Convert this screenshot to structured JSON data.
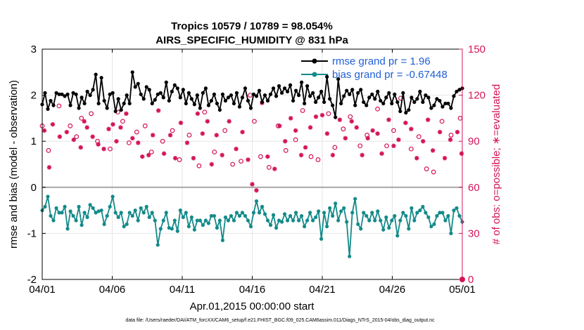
{
  "chart_data": {
    "type": "line",
    "title": "Tropics 10579 / 10789 = 98.054%",
    "subtitle": "AIRS_SPECIFIC_HUMIDITY @ 831 hPa",
    "xlabel": "Apr.01,2015 00:00:00 start",
    "ylabel": "rmse and bias (model - observation)",
    "ylabel_right": "# of obs: o=possible; ∗=evaluated",
    "footer": "data file: /Users/raeder/DAI/ATM_forcXX/CAM6_setup/f.e21.FHIST_BGC.f09_025.CAM6assim.011/Diags_NTrS_2015-04/obs_diag_output.nc",
    "xlim": [
      0,
      30
    ],
    "ylim": [
      -2,
      3
    ],
    "ylim_right": [
      0,
      150
    ],
    "xticks": [
      0,
      5,
      10,
      15,
      20,
      25,
      30
    ],
    "xtick_labels": [
      "04/01",
      "04/06",
      "04/11",
      "04/16",
      "04/21",
      "04/26",
      "05/01"
    ],
    "yticks": [
      -2,
      -1,
      0,
      1,
      2,
      3
    ],
    "ytick_labels": [
      "-2",
      "-1",
      "0",
      "1",
      "2",
      "3"
    ],
    "yticks_right": [
      0,
      30,
      60,
      90,
      120,
      150
    ],
    "ytick_labels_right": [
      "0",
      "30",
      "60",
      "90",
      "120",
      "150"
    ],
    "grid": true,
    "legend_position": "top-right",
    "series": [
      {
        "name": "rmse grand pr = 1.96",
        "color": "#000000",
        "marker": "dot",
        "axis": "left",
        "values": [
          1.8,
          2.05,
          1.7,
          1.88,
          1.78,
          2.05,
          2.02,
          2.02,
          1.98,
          2.02,
          1.78,
          2.05,
          2.02,
          1.72,
          1.95,
          1.82,
          2.08,
          2.0,
          2.12,
          2.45,
          1.82,
          2.38,
          1.88,
          1.72,
          2.02,
          2.05,
          1.65,
          1.92,
          1.68,
          1.82,
          2.0,
          1.82,
          2.5,
          2.18,
          2.25,
          2.02,
          1.92,
          2.18,
          2.12,
          1.82,
          1.9,
          2.02,
          2.05,
          1.95,
          2.28,
          1.88,
          2.08,
          2.22,
          2.15,
          1.95,
          2.12,
          1.82,
          2.05,
          1.92,
          1.8,
          2.0,
          1.72,
          2.05,
          2.15,
          1.78,
          1.88,
          2.02,
          1.82,
          1.68,
          2.02,
          1.88,
          1.95,
          2.0,
          1.82,
          2.05,
          1.75,
          1.95,
          2.15,
          1.88,
          1.72,
          2.02,
          1.98,
          2.1,
          1.85,
          2.0,
          1.88,
          2.02,
          2.15,
          1.98,
          2.2,
          2.05,
          2.15,
          2.08,
          2.22,
          1.88,
          2.1,
          2.0,
          2.28,
          1.82,
          2.2,
          1.98,
          2.05,
          1.85,
          1.95,
          2.08,
          1.85,
          2.4,
          1.92,
          1.78,
          1.52,
          2.35,
          1.82,
          1.98,
          2.1,
          2.02,
          2.12,
          1.78,
          2.05,
          2.12,
          1.85,
          1.78,
          1.95,
          2.02,
          1.92,
          2.08,
          1.88,
          1.82,
          1.95,
          2.05,
          1.82,
          2.02,
          1.85,
          1.65,
          2.05,
          1.62,
          1.68,
          1.95,
          1.85,
          1.92,
          2.08,
          1.85,
          2.0,
          1.95,
          1.72,
          1.78,
          1.92,
          1.88,
          1.75,
          1.82,
          1.82,
          1.72,
          1.98,
          2.08,
          2.12,
          2.15
        ]
      },
      {
        "name": "bias grand pr = -0.67448",
        "color": "#148a8a",
        "marker": "dot",
        "axis": "left",
        "values": [
          -0.5,
          -0.42,
          -0.2,
          -0.62,
          -0.72,
          -0.45,
          -0.55,
          -0.55,
          -0.42,
          -0.9,
          -0.52,
          -0.62,
          -0.72,
          -0.42,
          -0.82,
          -0.55,
          -0.65,
          -0.38,
          -0.45,
          -0.55,
          -0.52,
          -0.5,
          -0.8,
          -0.62,
          -0.42,
          -0.2,
          -0.55,
          -0.65,
          -0.55,
          -0.85,
          -0.8,
          -0.55,
          -0.62,
          -0.5,
          -0.72,
          -0.45,
          -0.55,
          -0.42,
          -0.65,
          -0.55,
          -0.72,
          -1.25,
          -0.9,
          -0.72,
          -0.55,
          -0.88,
          -0.9,
          -0.72,
          -0.95,
          -0.5,
          -0.65,
          -0.55,
          -0.85,
          -0.65,
          -0.92,
          -0.72,
          -0.72,
          -0.82,
          -0.72,
          -0.78,
          -0.62,
          -0.62,
          -0.88,
          -0.72,
          -1.15,
          -0.65,
          -0.72,
          -0.62,
          -0.72,
          -0.55,
          -0.62,
          -0.55,
          -0.62,
          -0.72,
          -0.85,
          -0.55,
          -0.3,
          -0.55,
          -0.42,
          -0.58,
          -0.72,
          -0.82,
          -0.6,
          -0.88,
          -0.72,
          -0.75,
          -0.58,
          -0.72,
          -0.62,
          -0.72,
          -0.55,
          -0.72,
          -0.62,
          -0.85,
          -0.72,
          -0.55,
          -0.72,
          -0.65,
          -0.52,
          -1.12,
          -0.55,
          -0.85,
          -0.45,
          -0.62,
          -0.35,
          -0.72,
          -0.52,
          -0.45,
          -0.75,
          -1.5,
          -0.55,
          -0.25,
          -0.8,
          -0.9,
          -0.55,
          -0.62,
          -0.72,
          -0.55,
          -0.72,
          -0.52,
          -0.72,
          -0.92,
          -0.65,
          -0.88,
          -0.72,
          -0.62,
          -1.05,
          -0.72,
          -0.55,
          -0.62,
          -0.9,
          -0.45,
          -0.72,
          -0.55,
          -0.5,
          -0.42,
          -0.55,
          -0.65,
          -0.85,
          -0.8,
          -0.62,
          -0.55,
          -0.55,
          -0.72,
          -0.62,
          -1.0,
          -0.5,
          -0.45,
          -0.62,
          -0.75
        ]
      }
    ],
    "obs_possible": {
      "color": "#d4145a",
      "marker": "o",
      "axis": "right",
      "x": [
        0,
        0.45,
        1.2,
        2.0,
        2.45,
        2.8,
        3.5,
        3.95,
        4.85,
        5.4,
        5.75,
        6.2,
        6.75,
        7.35,
        7.8,
        8.6,
        9.3,
        9.8,
        10.5,
        11.2,
        11.6,
        12.3,
        13.05,
        13.6,
        14.2,
        14.85,
        15.15,
        15.6,
        16.2,
        16.85,
        17.4,
        18.1,
        18.6,
        19.2,
        19.7,
        20.45,
        20.9,
        21.5,
        22.0,
        22.7,
        23.2,
        23.95,
        24.6,
        25.1,
        25.6,
        26.35,
        26.9,
        27.45,
        27.95,
        28.55,
        29.2,
        29.85
      ],
      "values": [
        100,
        84,
        113,
        100,
        93,
        105,
        108,
        90,
        85,
        109,
        103,
        89,
        96,
        100,
        83,
        90,
        97,
        78,
        94,
        74,
        109,
        83,
        97,
        75,
        77,
        120,
        103,
        80,
        73,
        100,
        84,
        91,
        110,
        80,
        78,
        108,
        86,
        98,
        106,
        87,
        94,
        111,
        87,
        97,
        118,
        85,
        93,
        72,
        70,
        103,
        94,
        105
      ]
    },
    "obs_evaluated": {
      "color": "#d4145a",
      "marker": "*",
      "axis": "right",
      "x": [
        0.15,
        0.5,
        0.75,
        1.25,
        1.75,
        2.25,
        2.75,
        3.0,
        3.2,
        3.6,
        4.0,
        4.4,
        4.75,
        5.05,
        5.3,
        5.6,
        6.0,
        6.45,
        6.85,
        7.15,
        7.6,
        7.9,
        8.3,
        8.7,
        9.15,
        9.5,
        9.9,
        10.35,
        10.8,
        11.1,
        11.45,
        11.8,
        12.1,
        12.45,
        12.85,
        13.35,
        13.85,
        14.3,
        14.7,
        15.0,
        15.3,
        15.7,
        16.1,
        16.6,
        16.95,
        17.35,
        17.75,
        18.1,
        18.5,
        18.8,
        19.15,
        19.55,
        20.0,
        20.35,
        20.75,
        21.25,
        21.65,
        22.1,
        22.45,
        22.85,
        23.25,
        23.6,
        23.95,
        24.25,
        24.75,
        25.1,
        25.45,
        25.95,
        26.35,
        26.75,
        27.2,
        27.55,
        27.9,
        28.4,
        28.75,
        29.15,
        29.65,
        29.95
      ],
      "values": [
        97,
        73,
        101,
        93,
        96,
        91,
        86,
        103,
        99,
        93,
        88,
        85,
        98,
        101,
        90,
        99,
        108,
        92,
        89,
        80,
        81,
        94,
        110,
        82,
        94,
        79,
        102,
        89,
        79,
        108,
        95,
        103,
        75,
        94,
        81,
        103,
        85,
        96,
        78,
        62,
        58,
        115,
        80,
        72,
        100,
        90,
        105,
        97,
        81,
        86,
        99,
        106,
        107,
        95,
        81,
        104,
        92,
        103,
        99,
        81,
        92,
        97,
        95,
        82,
        104,
        87,
        91,
        102,
        98,
        79,
        90,
        104,
        84,
        96,
        79,
        91,
        96,
        82
      ]
    }
  }
}
